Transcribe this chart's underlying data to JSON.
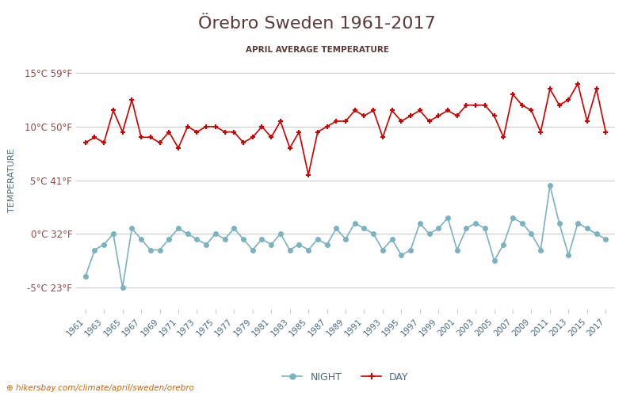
{
  "title": "Örebro Sweden 1961-2017",
  "subtitle": "APRIL AVERAGE TEMPERATURE",
  "ylabel": "TEMPERATURE",
  "xlabel_url": "hikersbay.com/climate/april/sweden/orebro",
  "years": [
    1961,
    1962,
    1963,
    1964,
    1965,
    1966,
    1967,
    1968,
    1969,
    1970,
    1971,
    1972,
    1973,
    1974,
    1975,
    1976,
    1977,
    1978,
    1979,
    1980,
    1981,
    1982,
    1983,
    1984,
    1985,
    1986,
    1987,
    1988,
    1989,
    1990,
    1991,
    1992,
    1993,
    1994,
    1995,
    1996,
    1997,
    1998,
    1999,
    2000,
    2001,
    2002,
    2003,
    2004,
    2005,
    2006,
    2007,
    2008,
    2009,
    2010,
    2011,
    2012,
    2013,
    2014,
    2015,
    2016,
    2017
  ],
  "day": [
    8.5,
    9.0,
    8.5,
    11.5,
    9.5,
    12.5,
    9.0,
    9.0,
    8.5,
    9.5,
    8.0,
    10.0,
    9.5,
    10.0,
    10.0,
    9.5,
    9.5,
    8.5,
    9.0,
    10.0,
    9.0,
    10.5,
    8.0,
    9.5,
    5.5,
    9.5,
    10.0,
    10.5,
    10.5,
    11.5,
    11.0,
    11.5,
    9.0,
    11.5,
    10.5,
    11.0,
    11.5,
    10.5,
    11.0,
    11.5,
    11.0,
    12.0,
    12.0,
    12.0,
    11.0,
    9.0,
    13.0,
    12.0,
    11.5,
    9.5,
    13.5,
    12.0,
    12.5,
    14.0,
    10.5,
    13.5,
    9.5
  ],
  "night": [
    -4.0,
    -1.5,
    -1.0,
    0.0,
    -5.0,
    0.5,
    -0.5,
    -1.5,
    -1.5,
    -0.5,
    0.5,
    0.0,
    -0.5,
    -1.0,
    0.0,
    -0.5,
    0.5,
    -0.5,
    -1.5,
    -0.5,
    -1.0,
    0.0,
    -1.5,
    -1.0,
    -1.5,
    -0.5,
    -1.0,
    0.5,
    -0.5,
    1.0,
    0.5,
    0.0,
    -1.5,
    -0.5,
    -2.0,
    -1.5,
    1.0,
    0.0,
    0.5,
    1.5,
    -1.5,
    0.5,
    1.0,
    0.5,
    -2.5,
    -1.0,
    1.5,
    1.0,
    0.0,
    -1.5,
    4.5,
    1.0,
    -2.0,
    1.0,
    0.5,
    0.0,
    -0.5
  ],
  "day_color": "#cc0000",
  "night_color": "#7ab3bf",
  "ylim": [
    -7,
    17
  ],
  "yticks": [
    -5,
    0,
    5,
    10,
    15
  ],
  "ytick_labels_c": [
    "-5°C",
    "0°C",
    "5°C",
    "10°C",
    "15°C"
  ],
  "ytick_labels_f": [
    "23°F",
    "32°F",
    "41°F",
    "50°F",
    "59°F"
  ],
  "title_color": "#5a3a3a",
  "subtitle_color": "#5a3a3a",
  "axis_label_color": "#4a6a7a",
  "tick_label_color": "#8a4a4a",
  "grid_color": "#cccccc",
  "background_color": "#ffffff",
  "url_color": "#cc6600",
  "legend_label_color": "#4a6a7a"
}
